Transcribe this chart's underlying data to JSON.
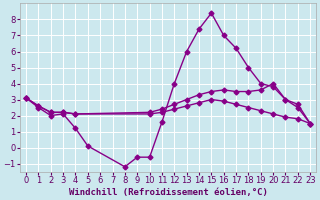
{
  "background_color": "#cce8ee",
  "grid_color": "#ffffff",
  "line_color": "#880088",
  "marker": "D",
  "markersize": 2.5,
  "linewidth": 1.0,
  "xlabel": "Windchill (Refroidissement éolien,°C)",
  "xlabel_fontsize": 6.5,
  "tick_fontsize": 6,
  "xlim": [
    -0.5,
    23.5
  ],
  "ylim": [
    -1.5,
    9.0
  ],
  "yticks": [
    -1,
    0,
    1,
    2,
    3,
    4,
    5,
    6,
    7,
    8
  ],
  "xticks": [
    0,
    1,
    2,
    3,
    4,
    5,
    6,
    7,
    8,
    9,
    10,
    11,
    12,
    13,
    14,
    15,
    16,
    17,
    18,
    19,
    20,
    21,
    22,
    23
  ],
  "series": [
    {
      "x": [
        0,
        1,
        2,
        3,
        4,
        5,
        8,
        9,
        10,
        11,
        12,
        13,
        14,
        15,
        16,
        17,
        18,
        19,
        20,
        21,
        22,
        23
      ],
      "y": [
        3.1,
        2.5,
        2.0,
        2.1,
        1.2,
        0.1,
        -1.2,
        -0.6,
        -0.6,
        1.6,
        4.0,
        6.0,
        7.4,
        8.4,
        7.0,
        6.2,
        5.0,
        4.0,
        3.8,
        3.0,
        2.5,
        1.5
      ]
    },
    {
      "x": [
        0,
        23
      ],
      "y": [
        3.1,
        1.5
      ]
    },
    {
      "x": [
        0,
        23
      ],
      "y": [
        3.1,
        1.5
      ]
    }
  ],
  "series2": [
    {
      "x": [
        0,
        1,
        2,
        3,
        4,
        5,
        8,
        9,
        10,
        11,
        12,
        13,
        14,
        15,
        16,
        17,
        18,
        19,
        20,
        21,
        22,
        23
      ],
      "y": [
        3.1,
        2.5,
        2.0,
        2.1,
        1.2,
        0.1,
        -1.2,
        -0.6,
        -0.6,
        1.6,
        4.0,
        6.0,
        7.4,
        8.4,
        7.0,
        6.2,
        5.0,
        4.0,
        3.8,
        3.0,
        2.5,
        1.5
      ]
    },
    {
      "x": [
        0,
        1,
        2,
        3,
        4,
        10,
        11,
        12,
        13,
        14,
        15,
        16,
        17,
        18,
        19,
        20,
        21,
        22,
        23
      ],
      "y": [
        3.1,
        2.6,
        2.2,
        2.2,
        2.1,
        2.2,
        2.4,
        2.7,
        3.0,
        3.3,
        3.5,
        3.6,
        3.5,
        3.5,
        3.6,
        4.0,
        3.0,
        2.7,
        1.5
      ]
    },
    {
      "x": [
        0,
        1,
        2,
        3,
        4,
        10,
        11,
        12,
        13,
        14,
        15,
        16,
        17,
        18,
        19,
        20,
        21,
        22,
        23
      ],
      "y": [
        3.1,
        2.6,
        2.2,
        2.2,
        2.1,
        2.1,
        2.2,
        2.4,
        2.6,
        2.8,
        3.0,
        2.9,
        2.7,
        2.5,
        2.3,
        2.1,
        1.9,
        1.8,
        1.5
      ]
    }
  ]
}
